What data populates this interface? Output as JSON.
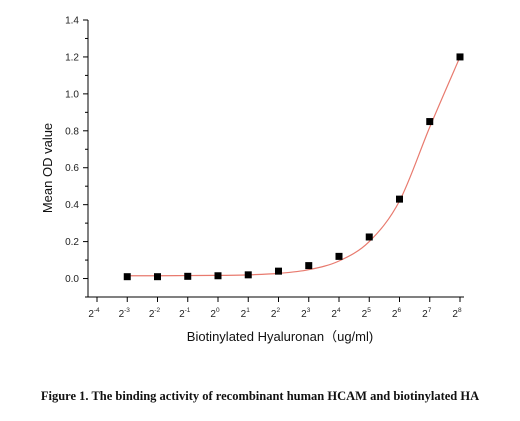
{
  "chart_data": {
    "type": "scatter",
    "title": "",
    "xlabel": "Biotinylated Hyaluronan（ug/ml)",
    "ylabel": "Mean OD value",
    "x_scale": "log2",
    "x_ticks": [
      {
        "base": "2",
        "exp": "-4",
        "value": 0.0625
      },
      {
        "base": "2",
        "exp": "-3",
        "value": 0.125
      },
      {
        "base": "2",
        "exp": "-2",
        "value": 0.25
      },
      {
        "base": "2",
        "exp": "-1",
        "value": 0.5
      },
      {
        "base": "2",
        "exp": "0",
        "value": 1
      },
      {
        "base": "2",
        "exp": "1",
        "value": 2
      },
      {
        "base": "2",
        "exp": "2",
        "value": 4
      },
      {
        "base": "2",
        "exp": "3",
        "value": 8
      },
      {
        "base": "2",
        "exp": "4",
        "value": 16
      },
      {
        "base": "2",
        "exp": "5",
        "value": 32
      },
      {
        "base": "2",
        "exp": "6",
        "value": 64
      },
      {
        "base": "2",
        "exp": "7",
        "value": 128
      },
      {
        "base": "2",
        "exp": "8",
        "value": 256
      }
    ],
    "y_ticks": [
      "0.0",
      "0.2",
      "0.4",
      "0.6",
      "0.8",
      "1.0",
      "1.2",
      "1.4"
    ],
    "ylim": [
      -0.1,
      1.4
    ],
    "xlim": [
      0.0625,
      256
    ],
    "grid": false,
    "points": {
      "x": [
        0.125,
        0.25,
        0.5,
        1,
        2,
        4,
        8,
        16,
        32,
        64,
        128,
        256
      ],
      "y": [
        0.01,
        0.01,
        0.012,
        0.015,
        0.02,
        0.04,
        0.07,
        0.12,
        0.225,
        0.43,
        0.85,
        1.2
      ]
    },
    "fit_curve": {
      "color": "#e87a6e",
      "x": [
        0.125,
        0.25,
        0.5,
        1,
        2,
        4,
        8,
        16,
        32,
        64,
        128,
        256
      ],
      "y": [
        0.015,
        0.015,
        0.016,
        0.017,
        0.02,
        0.028,
        0.048,
        0.095,
        0.2,
        0.42,
        0.82,
        1.2
      ]
    },
    "marker_color": "#000000"
  },
  "caption": "Figure 1. The binding activity of recombinant human HCAM and biotinylated HA"
}
